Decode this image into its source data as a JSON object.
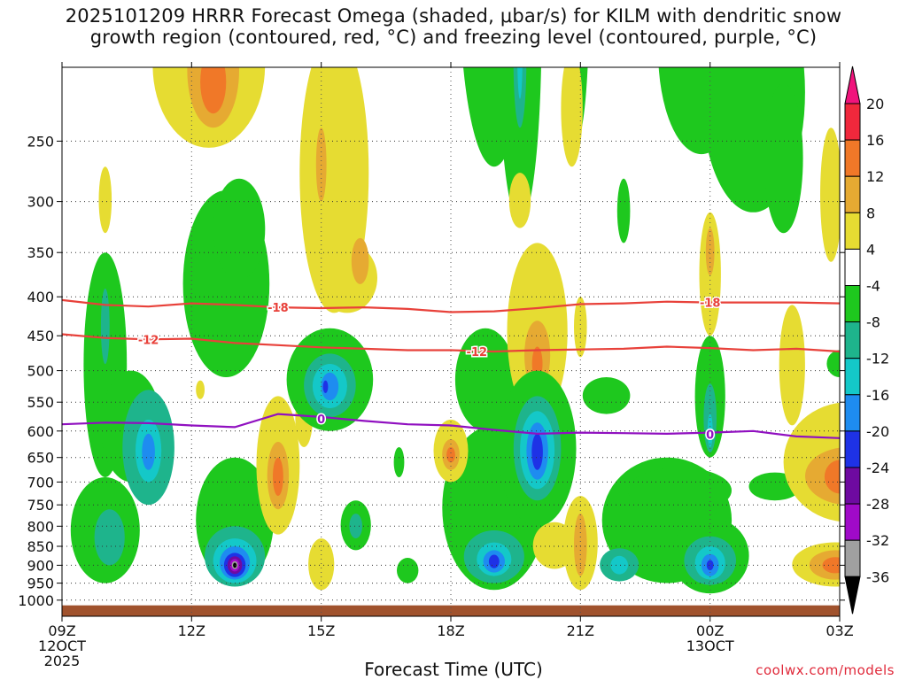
{
  "title": {
    "line1": "2025101209 HRRR Forecast Omega (shaded, μbar/s) for KILM with dendritic snow",
    "line2": "growth region (contoured, red, °C) and freezing level (contoured, purple, °C)"
  },
  "credit": "coolwx.com/models",
  "chart_data": {
    "type": "heatmap",
    "title": "2025101209 HRRR Forecast Omega (shaded, μbar/s) for KILM with dendritic snow growth region (contoured, red, °C) and freezing level (contoured, purple, °C)",
    "xlabel": "Forecast Time (UTC)",
    "ylabel": "",
    "xlim": [
      0,
      18
    ],
    "ylim": [
      1050,
      200
    ],
    "x_ticks": [
      {
        "x": 0,
        "label": "09Z",
        "sub1": "12OCT",
        "sub2": "2025"
      },
      {
        "x": 3,
        "label": "12Z",
        "sub1": "",
        "sub2": ""
      },
      {
        "x": 6,
        "label": "15Z",
        "sub1": "",
        "sub2": ""
      },
      {
        "x": 9,
        "label": "18Z",
        "sub1": "",
        "sub2": ""
      },
      {
        "x": 12,
        "label": "21Z",
        "sub1": "",
        "sub2": ""
      },
      {
        "x": 15,
        "label": "00Z",
        "sub1": "13OCT",
        "sub2": ""
      },
      {
        "x": 18,
        "label": "03Z",
        "sub1": "",
        "sub2": ""
      }
    ],
    "y_ticks": [
      {
        "p": 250,
        "label": "250"
      },
      {
        "p": 300,
        "label": "300"
      },
      {
        "p": 350,
        "label": "350"
      },
      {
        "p": 400,
        "label": "400"
      },
      {
        "p": 450,
        "label": "450"
      },
      {
        "p": 500,
        "label": "500"
      },
      {
        "p": 550,
        "label": "550"
      },
      {
        "p": 600,
        "label": "600"
      },
      {
        "p": 650,
        "label": "650"
      },
      {
        "p": 700,
        "label": "700"
      },
      {
        "p": 750,
        "label": "750"
      },
      {
        "p": 800,
        "label": "800"
      },
      {
        "p": 850,
        "label": "850"
      },
      {
        "p": 900,
        "label": "900"
      },
      {
        "p": 950,
        "label": "950"
      },
      {
        "p": 1000,
        "label": "1000"
      }
    ],
    "ground_pressure": 1016,
    "colorbar": {
      "labels": [
        "20",
        "16",
        "12",
        "8",
        "4",
        "-4",
        "-8",
        "-12",
        "-16",
        "-20",
        "-24",
        "-28",
        "-32",
        "-36"
      ],
      "colors": [
        "#f0147c",
        "#f0283c",
        "#f07828",
        "#e6aa32",
        "#e6dc32",
        "#ffffff",
        "#1ec81e",
        "#1eb48c",
        "#14c8c8",
        "#1e8cf0",
        "#1e32e6",
        "#6e0aa0",
        "#a00ac8",
        "#a0a0a0",
        "#000000"
      ]
    },
    "cells": [
      {
        "x": 3.4,
        "p": 205,
        "rx": 1.3,
        "ry": 50,
        "v": 5
      },
      {
        "x": 3.5,
        "p": 205,
        "rx": 0.6,
        "ry": 35,
        "v": 9
      },
      {
        "x": 3.5,
        "p": 210,
        "rx": 0.3,
        "ry": 20,
        "v": 13
      },
      {
        "x": 1.0,
        "p": 300,
        "rx": 0.15,
        "ry": 30,
        "v": 5
      },
      {
        "x": 3.8,
        "p": 400,
        "rx": 1.0,
        "ry": 110,
        "v": -5
      },
      {
        "x": 4.1,
        "p": 330,
        "rx": 0.6,
        "ry": 50,
        "v": -5
      },
      {
        "x": 6.3,
        "p": 300,
        "rx": 0.8,
        "ry": 120,
        "v": 5
      },
      {
        "x": 6.6,
        "p": 380,
        "rx": 0.7,
        "ry": 40,
        "v": 5
      },
      {
        "x": 6.0,
        "p": 270,
        "rx": 0.12,
        "ry": 30,
        "v": 9
      },
      {
        "x": 6.9,
        "p": 360,
        "rx": 0.2,
        "ry": 25,
        "v": 9
      },
      {
        "x": 1.0,
        "p": 520,
        "rx": 0.5,
        "ry": 170,
        "v": -5
      },
      {
        "x": 1.6,
        "p": 600,
        "rx": 0.7,
        "ry": 100,
        "v": -5
      },
      {
        "x": 1.0,
        "p": 820,
        "rx": 0.8,
        "ry": 130,
        "v": -5
      },
      {
        "x": 1.1,
        "p": 830,
        "rx": 0.35,
        "ry": 70,
        "v": -9
      },
      {
        "x": 1.0,
        "p": 440,
        "rx": 0.1,
        "ry": 50,
        "v": -9
      },
      {
        "x": 2.0,
        "p": 640,
        "rx": 0.6,
        "ry": 110,
        "v": -9
      },
      {
        "x": 2.0,
        "p": 640,
        "rx": 0.3,
        "ry": 60,
        "v": -13
      },
      {
        "x": 2.0,
        "p": 640,
        "rx": 0.15,
        "ry": 35,
        "v": -17
      },
      {
        "x": 3.2,
        "p": 530,
        "rx": 0.1,
        "ry": 15,
        "v": 5
      },
      {
        "x": 4.0,
        "p": 800,
        "rx": 0.9,
        "ry": 150,
        "v": -5
      },
      {
        "x": 4.0,
        "p": 880,
        "rx": 0.7,
        "ry": 80,
        "v": -9
      },
      {
        "x": 4.0,
        "p": 890,
        "rx": 0.5,
        "ry": 60,
        "v": -13
      },
      {
        "x": 4.0,
        "p": 895,
        "rx": 0.35,
        "ry": 45,
        "v": -17
      },
      {
        "x": 4.0,
        "p": 900,
        "rx": 0.25,
        "ry": 33,
        "v": -21
      },
      {
        "x": 4.0,
        "p": 900,
        "rx": 0.17,
        "ry": 24,
        "v": -25
      },
      {
        "x": 4.0,
        "p": 900,
        "rx": 0.11,
        "ry": 17,
        "v": -29
      },
      {
        "x": 4.0,
        "p": 900,
        "rx": 0.07,
        "ry": 11,
        "v": -34
      },
      {
        "x": 4.0,
        "p": 900,
        "rx": 0.04,
        "ry": 7,
        "v": -38
      },
      {
        "x": 5.0,
        "p": 680,
        "rx": 0.5,
        "ry": 140,
        "v": 5
      },
      {
        "x": 5.0,
        "p": 690,
        "rx": 0.25,
        "ry": 70,
        "v": 9
      },
      {
        "x": 5.0,
        "p": 690,
        "rx": 0.12,
        "ry": 40,
        "v": 13
      },
      {
        "x": 5.6,
        "p": 580,
        "rx": 0.2,
        "ry": 50,
        "v": 5
      },
      {
        "x": 6.2,
        "p": 520,
        "rx": 1.0,
        "ry": 80,
        "v": -5
      },
      {
        "x": 6.2,
        "p": 525,
        "rx": 0.6,
        "ry": 50,
        "v": -9
      },
      {
        "x": 6.2,
        "p": 525,
        "rx": 0.4,
        "ry": 35,
        "v": -13
      },
      {
        "x": 6.2,
        "p": 525,
        "rx": 0.2,
        "ry": 22,
        "v": -17
      },
      {
        "x": 6.1,
        "p": 525,
        "rx": 0.06,
        "ry": 10,
        "v": -21
      },
      {
        "x": 6.8,
        "p": 800,
        "rx": 0.35,
        "ry": 60,
        "v": -5
      },
      {
        "x": 6.8,
        "p": 800,
        "rx": 0.15,
        "ry": 30,
        "v": -9
      },
      {
        "x": 6.0,
        "p": 900,
        "rx": 0.3,
        "ry": 70,
        "v": 5
      },
      {
        "x": 8.0,
        "p": 915,
        "rx": 0.25,
        "ry": 35,
        "v": -5
      },
      {
        "x": 7.8,
        "p": 660,
        "rx": 0.12,
        "ry": 30,
        "v": -5
      },
      {
        "x": 10.0,
        "p": 780,
        "rx": 1.2,
        "ry": 190,
        "v": -5
      },
      {
        "x": 10.0,
        "p": 880,
        "rx": 0.7,
        "ry": 70,
        "v": -9
      },
      {
        "x": 10.0,
        "p": 885,
        "rx": 0.4,
        "ry": 45,
        "v": -13
      },
      {
        "x": 10.0,
        "p": 890,
        "rx": 0.25,
        "ry": 30,
        "v": -17
      },
      {
        "x": 10.0,
        "p": 890,
        "rx": 0.12,
        "ry": 18,
        "v": -21
      },
      {
        "x": 9.8,
        "p": 520,
        "rx": 0.7,
        "ry": 80,
        "v": -5
      },
      {
        "x": 10.0,
        "p": 180,
        "rx": 0.8,
        "ry": 90,
        "v": -5
      },
      {
        "x": 10.6,
        "p": 210,
        "rx": 0.5,
        "ry": 110,
        "v": -5
      },
      {
        "x": 10.6,
        "p": 200,
        "rx": 0.15,
        "ry": 40,
        "v": -9
      },
      {
        "x": 10.6,
        "p": 195,
        "rx": 0.06,
        "ry": 25,
        "v": -13
      },
      {
        "x": 11.9,
        "p": 180,
        "rx": 0.3,
        "ry": 70,
        "v": -5
      },
      {
        "x": 11.8,
        "p": 230,
        "rx": 0.25,
        "ry": 40,
        "v": 5
      },
      {
        "x": 11.0,
        "p": 460,
        "rx": 0.7,
        "ry": 120,
        "v": 5
      },
      {
        "x": 11.0,
        "p": 480,
        "rx": 0.3,
        "ry": 50,
        "v": 9
      },
      {
        "x": 11.0,
        "p": 490,
        "rx": 0.12,
        "ry": 25,
        "v": 13
      },
      {
        "x": 12.0,
        "p": 440,
        "rx": 0.15,
        "ry": 40,
        "v": 5
      },
      {
        "x": 10.6,
        "p": 300,
        "rx": 0.25,
        "ry": 25,
        "v": 5
      },
      {
        "x": 10.3,
        "p": 680,
        "rx": 0.5,
        "ry": 130,
        "v": -5
      },
      {
        "x": 11.0,
        "p": 650,
        "rx": 0.9,
        "ry": 150,
        "v": -5
      },
      {
        "x": 11.0,
        "p": 640,
        "rx": 0.55,
        "ry": 100,
        "v": -9
      },
      {
        "x": 11.0,
        "p": 640,
        "rx": 0.4,
        "ry": 75,
        "v": -13
      },
      {
        "x": 11.0,
        "p": 640,
        "rx": 0.25,
        "ry": 55,
        "v": -17
      },
      {
        "x": 11.0,
        "p": 640,
        "rx": 0.13,
        "ry": 35,
        "v": -21
      },
      {
        "x": 9.0,
        "p": 640,
        "rx": 0.4,
        "ry": 60,
        "v": 5
      },
      {
        "x": 9.0,
        "p": 645,
        "rx": 0.2,
        "ry": 30,
        "v": 9
      },
      {
        "x": 9.0,
        "p": 645,
        "rx": 0.1,
        "ry": 15,
        "v": 13
      },
      {
        "x": 11.4,
        "p": 850,
        "rx": 0.5,
        "ry": 60,
        "v": 5
      },
      {
        "x": 12.0,
        "p": 850,
        "rx": 0.4,
        "ry": 120,
        "v": 5
      },
      {
        "x": 12.0,
        "p": 850,
        "rx": 0.15,
        "ry": 80,
        "v": 9
      },
      {
        "x": 12.6,
        "p": 540,
        "rx": 0.55,
        "ry": 30,
        "v": -5
      },
      {
        "x": 13.0,
        "p": 310,
        "rx": 0.15,
        "ry": 30,
        "v": -5
      },
      {
        "x": 14.0,
        "p": 800,
        "rx": 1.5,
        "ry": 150,
        "v": -5
      },
      {
        "x": 12.9,
        "p": 900,
        "rx": 0.45,
        "ry": 45,
        "v": -9
      },
      {
        "x": 12.9,
        "p": 900,
        "rx": 0.2,
        "ry": 25,
        "v": -13
      },
      {
        "x": 15.0,
        "p": 880,
        "rx": 0.9,
        "ry": 100,
        "v": -5
      },
      {
        "x": 15.0,
        "p": 890,
        "rx": 0.6,
        "ry": 65,
        "v": -9
      },
      {
        "x": 15.0,
        "p": 895,
        "rx": 0.35,
        "ry": 45,
        "v": -13
      },
      {
        "x": 15.0,
        "p": 900,
        "rx": 0.2,
        "ry": 30,
        "v": -17
      },
      {
        "x": 15.0,
        "p": 900,
        "rx": 0.08,
        "ry": 14,
        "v": -21
      },
      {
        "x": 16.5,
        "p": 710,
        "rx": 0.6,
        "ry": 30,
        "v": -5
      },
      {
        "x": 14.3,
        "p": 720,
        "rx": 1.2,
        "ry": 50,
        "v": -5
      },
      {
        "x": 15.0,
        "p": 550,
        "rx": 0.35,
        "ry": 100,
        "v": -5
      },
      {
        "x": 15.0,
        "p": 580,
        "rx": 0.15,
        "ry": 60,
        "v": -9
      },
      {
        "x": 15.0,
        "p": 600,
        "rx": 0.06,
        "ry": 30,
        "v": -13
      },
      {
        "x": 15.0,
        "p": 380,
        "rx": 0.25,
        "ry": 70,
        "v": 5
      },
      {
        "x": 15.0,
        "p": 350,
        "rx": 0.1,
        "ry": 25,
        "v": 9
      },
      {
        "x": 14.8,
        "p": 200,
        "rx": 1.0,
        "ry": 60,
        "v": -5
      },
      {
        "x": 16.0,
        "p": 230,
        "rx": 1.2,
        "ry": 80,
        "v": -5
      },
      {
        "x": 16.7,
        "p": 270,
        "rx": 0.45,
        "ry": 60,
        "v": -5
      },
      {
        "x": 17.8,
        "p": 300,
        "rx": 0.25,
        "ry": 60,
        "v": 5
      },
      {
        "x": 16.9,
        "p": 500,
        "rx": 0.3,
        "ry": 90,
        "v": 5
      },
      {
        "x": 18.0,
        "p": 490,
        "rx": 0.3,
        "ry": 20,
        "v": -5
      },
      {
        "x": 18.2,
        "p": 670,
        "rx": 1.5,
        "ry": 120,
        "v": 5
      },
      {
        "x": 18.2,
        "p": 690,
        "rx": 1.0,
        "ry": 60,
        "v": 9
      },
      {
        "x": 18.0,
        "p": 690,
        "rx": 0.35,
        "ry": 35,
        "v": 13
      },
      {
        "x": 17.9,
        "p": 900,
        "rx": 1.0,
        "ry": 60,
        "v": 5
      },
      {
        "x": 17.9,
        "p": 900,
        "rx": 0.6,
        "ry": 40,
        "v": 9
      },
      {
        "x": 17.9,
        "p": 900,
        "rx": 0.3,
        "ry": 22,
        "v": 13
      }
    ],
    "contours": [
      {
        "name": "-18 isotherm",
        "color": "#e8413a",
        "label": "-18",
        "label_at": [
          [
            5.0,
            413
          ],
          [
            15.0,
            407
          ]
        ],
        "points": [
          [
            0,
            404
          ],
          [
            1,
            410
          ],
          [
            2,
            412
          ],
          [
            3,
            408
          ],
          [
            4,
            410
          ],
          [
            5,
            413
          ],
          [
            6,
            414
          ],
          [
            7,
            413
          ],
          [
            8,
            415
          ],
          [
            9,
            419
          ],
          [
            10,
            418
          ],
          [
            11,
            414
          ],
          [
            12,
            409
          ],
          [
            13,
            408
          ],
          [
            14,
            406
          ],
          [
            15,
            407
          ],
          [
            16,
            407
          ],
          [
            17,
            407
          ],
          [
            18,
            408
          ]
        ]
      },
      {
        "name": "-12 isotherm",
        "color": "#e8413a",
        "label": "-12",
        "label_at": [
          [
            2.0,
            455
          ],
          [
            9.6,
            472
          ]
        ],
        "points": [
          [
            0,
            448
          ],
          [
            1,
            453
          ],
          [
            2,
            455
          ],
          [
            3,
            454
          ],
          [
            4,
            460
          ],
          [
            5,
            463
          ],
          [
            6,
            466
          ],
          [
            7,
            468
          ],
          [
            8,
            470
          ],
          [
            9,
            470
          ],
          [
            10,
            472
          ],
          [
            11,
            470
          ],
          [
            12,
            469
          ],
          [
            13,
            468
          ],
          [
            14,
            465
          ],
          [
            15,
            467
          ],
          [
            16,
            470
          ],
          [
            17,
            468
          ],
          [
            18,
            472
          ]
        ]
      },
      {
        "name": "freezing level",
        "color": "#9010c0",
        "label": "0",
        "label_at": [
          [
            6.0,
            578
          ],
          [
            15.0,
            606
          ]
        ],
        "points": [
          [
            0,
            588
          ],
          [
            1,
            585
          ],
          [
            2,
            586
          ],
          [
            3,
            590
          ],
          [
            4,
            593
          ],
          [
            5,
            570
          ],
          [
            6,
            575
          ],
          [
            7,
            582
          ],
          [
            8,
            588
          ],
          [
            9,
            590
          ],
          [
            10,
            598
          ],
          [
            11,
            605
          ],
          [
            12,
            603
          ],
          [
            13,
            604
          ],
          [
            14,
            605
          ],
          [
            15,
            603
          ],
          [
            16,
            600
          ],
          [
            17,
            610
          ],
          [
            18,
            613
          ]
        ]
      }
    ]
  }
}
